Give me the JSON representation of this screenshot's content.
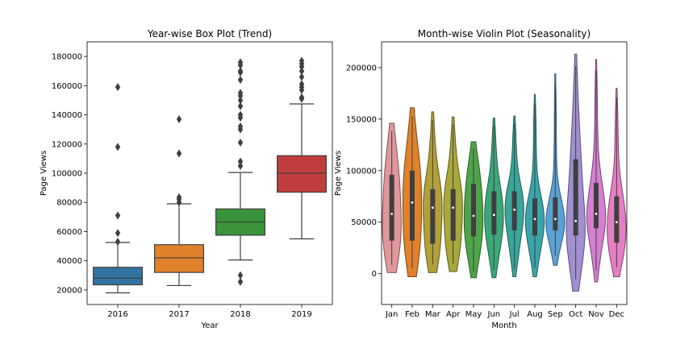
{
  "chart_data": [
    {
      "type": "box",
      "title": "Year-wise Box Plot (Trend)",
      "xlabel": "Year",
      "ylabel": "Page Views",
      "ylim": [
        10000,
        190000
      ],
      "yticks": [
        20000,
        40000,
        60000,
        80000,
        100000,
        120000,
        140000,
        160000,
        180000
      ],
      "grid": false,
      "categories": [
        "2016",
        "2017",
        "2018",
        "2019"
      ],
      "colors": [
        "#3274a1",
        "#e1812c",
        "#3a923a",
        "#c03d3e"
      ],
      "boxes": [
        {
          "category": "2016",
          "whisker_low": 18000,
          "q1": 23500,
          "median": 28000,
          "q3": 35500,
          "whisker_high": 52500,
          "outliers": [
            53000,
            59000,
            71000,
            118000,
            159000
          ]
        },
        {
          "category": "2017",
          "whisker_low": 23000,
          "q1": 32000,
          "median": 42000,
          "q3": 51000,
          "whisker_high": 79000,
          "outliers": [
            80000,
            82000,
            83500,
            113500,
            137000
          ]
        },
        {
          "category": "2018",
          "whisker_low": 40500,
          "q1": 57500,
          "median": 66500,
          "q3": 75500,
          "whisker_high": 100500,
          "outliers": [
            25500,
            30000,
            105000,
            108000,
            121000,
            130000,
            132000,
            138000,
            140000,
            146000,
            150000,
            153000,
            155000,
            164000,
            169000,
            170000,
            174000,
            176000
          ]
        },
        {
          "category": "2019",
          "whisker_low": 55000,
          "q1": 87000,
          "median": 100000,
          "q3": 112000,
          "whisker_high": 147500,
          "outliers": [
            151000,
            152000,
            157000,
            159000,
            161000,
            166000,
            170000,
            173000,
            175000,
            177000
          ]
        }
      ]
    },
    {
      "type": "violin",
      "title": "Month-wise Violin Plot (Seasonality)",
      "xlabel": "Month",
      "ylabel": "Page Views",
      "ylim": [
        -30000,
        225000
      ],
      "yticks": [
        0,
        50000,
        100000,
        150000,
        200000
      ],
      "grid": false,
      "categories": [
        "Jan",
        "Feb",
        "Mar",
        "Apr",
        "May",
        "Jun",
        "Jul",
        "Aug",
        "Sep",
        "Oct",
        "Nov",
        "Dec"
      ],
      "colors": [
        "#e1979a",
        "#e1812c",
        "#b2a03a",
        "#a9a83a",
        "#4ea549",
        "#3ca77b",
        "#3aa59a",
        "#3aa5a9",
        "#58a2d6",
        "#a28fd2",
        "#d47fd0",
        "#e57fc3"
      ],
      "violins": [
        {
          "month": "Jan",
          "min": 1000,
          "max": 146000,
          "q1": 32000,
          "median": 58000,
          "q3": 96000
        },
        {
          "month": "Feb",
          "min": -3000,
          "max": 161000,
          "q1": 32000,
          "median": 69000,
          "q3": 100000
        },
        {
          "month": "Mar",
          "min": 1000,
          "max": 157000,
          "q1": 29000,
          "median": 64000,
          "q3": 82000
        },
        {
          "month": "Apr",
          "min": 2000,
          "max": 152000,
          "q1": 32000,
          "median": 64000,
          "q3": 82000
        },
        {
          "month": "May",
          "min": -4000,
          "max": 128000,
          "q1": 36000,
          "median": 56000,
          "q3": 87000
        },
        {
          "month": "Jun",
          "min": -4000,
          "max": 151000,
          "q1": 38000,
          "median": 57000,
          "q3": 80000
        },
        {
          "month": "Jul",
          "min": -3000,
          "max": 153000,
          "q1": 42000,
          "median": 62000,
          "q3": 80000
        },
        {
          "month": "Aug",
          "min": -3000,
          "max": 174000,
          "q1": 37000,
          "median": 53000,
          "q3": 73000
        },
        {
          "month": "Sep",
          "min": 8000,
          "max": 194000,
          "q1": 42000,
          "median": 53000,
          "q3": 74000
        },
        {
          "month": "Oct",
          "min": -17000,
          "max": 213000,
          "q1": 37000,
          "median": 51000,
          "q3": 111000
        },
        {
          "month": "Nov",
          "min": -8000,
          "max": 208000,
          "q1": 44000,
          "median": 58000,
          "q3": 88000
        },
        {
          "month": "Dec",
          "min": -3000,
          "max": 180000,
          "q1": 30000,
          "median": 50000,
          "q3": 75000
        }
      ]
    }
  ]
}
